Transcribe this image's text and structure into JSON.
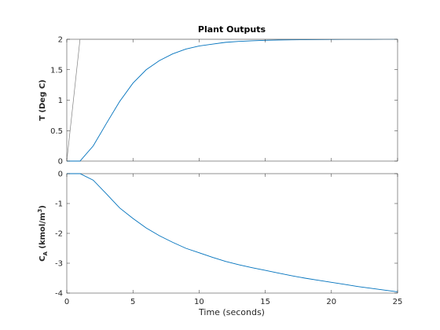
{
  "chart_data": [
    {
      "type": "line",
      "title": "Plant Outputs",
      "ylabel": "T (Deg C)",
      "xlabel": "",
      "xlim": [
        0,
        25
      ],
      "ylim": [
        0,
        2
      ],
      "xticks": [
        0,
        5,
        10,
        15,
        20,
        25
      ],
      "yticks": [
        0,
        0.5,
        1,
        1.5,
        2
      ],
      "xtick_labels_visible": false,
      "grid": false,
      "series": [
        {
          "color": "#0072bd",
          "x": [
            0,
            1,
            2,
            3,
            4,
            5,
            6,
            7,
            8,
            9,
            10,
            11,
            12,
            13,
            14,
            15,
            16,
            17,
            18,
            19,
            20,
            21,
            22,
            23,
            24,
            25
          ],
          "y": [
            0,
            0,
            0.25,
            0.62,
            0.98,
            1.28,
            1.5,
            1.65,
            1.76,
            1.84,
            1.89,
            1.92,
            1.95,
            1.965,
            1.975,
            1.983,
            1.988,
            1.991,
            1.993,
            1.995,
            1.996,
            1.997,
            1.998,
            1.998,
            1.999,
            2.0
          ]
        },
        {
          "color": "#808080",
          "x": [
            0,
            1,
            2,
            3,
            4,
            5,
            6,
            7,
            8,
            9,
            10,
            11,
            12,
            13,
            14,
            15,
            16,
            17,
            18,
            19,
            20,
            21,
            22,
            23,
            24,
            25
          ],
          "y": [
            0,
            2,
            2,
            2,
            2,
            2,
            2,
            2,
            2,
            2,
            2,
            2,
            2,
            2,
            2,
            2,
            2,
            2,
            2,
            2,
            2,
            2,
            2,
            2,
            2,
            2
          ]
        }
      ]
    },
    {
      "type": "line",
      "title": "",
      "ylabel_main": "C",
      "ylabel_sub": "A",
      "ylabel_rest": " (kmol/m",
      "ylabel_sup": "3",
      "ylabel_close": ")",
      "xlabel": "Time (seconds)",
      "xlim": [
        0,
        25
      ],
      "ylim": [
        -4,
        0
      ],
      "xticks": [
        0,
        5,
        10,
        15,
        20,
        25
      ],
      "yticks": [
        -4,
        -3,
        -2,
        -1,
        0
      ],
      "grid": false,
      "series": [
        {
          "color": "#0072bd",
          "x": [
            0,
            1,
            2,
            3,
            4,
            5,
            6,
            7,
            8,
            9,
            10,
            11,
            12,
            13,
            14,
            15,
            16,
            17,
            18,
            19,
            20,
            21,
            22,
            23,
            24,
            25
          ],
          "y": [
            0,
            0,
            -0.22,
            -0.68,
            -1.15,
            -1.5,
            -1.82,
            -2.08,
            -2.3,
            -2.5,
            -2.65,
            -2.8,
            -2.94,
            -3.05,
            -3.15,
            -3.24,
            -3.33,
            -3.42,
            -3.5,
            -3.57,
            -3.64,
            -3.71,
            -3.78,
            -3.84,
            -3.9,
            -3.96
          ]
        }
      ]
    }
  ]
}
